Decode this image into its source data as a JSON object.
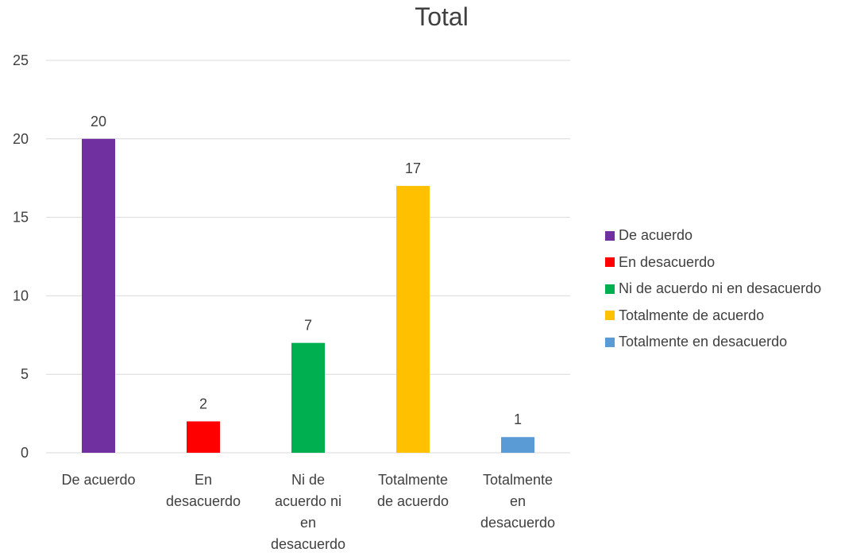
{
  "chart_data": {
    "type": "bar",
    "title": "Total",
    "categories": [
      "De acuerdo",
      "En desacuerdo",
      "Ni de acuerdo ni en desacuerdo",
      "Totalmente de acuerdo",
      "Totalmente en desacuerdo"
    ],
    "category_label_lines": [
      [
        "De acuerdo"
      ],
      [
        "En",
        "desacuerdo"
      ],
      [
        "Ni de",
        "acuerdo ni",
        "en",
        "desacuerdo"
      ],
      [
        "Totalmente",
        "de acuerdo"
      ],
      [
        "Totalmente",
        "en",
        "desacuerdo"
      ]
    ],
    "values": [
      20,
      2,
      7,
      17,
      1
    ],
    "colors": [
      "#7030A0",
      "#FF0000",
      "#00B050",
      "#FFC000",
      "#5B9BD5"
    ],
    "ylim": [
      0,
      25
    ],
    "yticks": [
      0,
      5,
      10,
      15,
      20,
      25
    ],
    "xlabel": "",
    "ylabel": "",
    "grid": true,
    "data_labels": true,
    "legend": {
      "position": "right",
      "entries": [
        "De acuerdo",
        "En desacuerdo",
        "Ni de acuerdo ni en desacuerdo",
        "Totalmente de acuerdo",
        "Totalmente en desacuerdo"
      ]
    }
  }
}
